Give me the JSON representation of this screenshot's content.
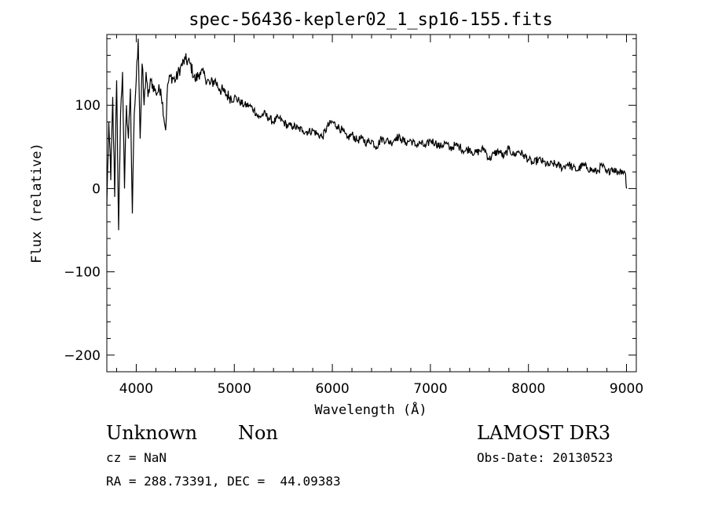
{
  "chart_data": {
    "type": "line",
    "title": "spec-56436-kepler02_1_sp16-155.fits",
    "xlabel": "Wavelength (Å)",
    "ylabel": "Flux (relative)",
    "xlim": [
      3700,
      9100
    ],
    "ylim": [
      -220,
      185
    ],
    "xticks": [
      4000,
      5000,
      6000,
      7000,
      8000,
      9000
    ],
    "yticks": [
      -200,
      -100,
      0,
      100
    ],
    "xtick_labels": [
      "4000",
      "5000",
      "6000",
      "7000",
      "8000",
      "9000"
    ],
    "ytick_labels": [
      "−200",
      "−100",
      "0",
      "100"
    ],
    "series": [
      {
        "name": "flux",
        "x": [
          3700,
          3720,
          3740,
          3760,
          3780,
          3800,
          3820,
          3840,
          3860,
          3880,
          3900,
          3920,
          3940,
          3960,
          3980,
          4000,
          4020,
          4040,
          4060,
          4080,
          4100,
          4120,
          4150,
          4200,
          4250,
          4300,
          4320,
          4350,
          4400,
          4450,
          4500,
          4550,
          4600,
          4650,
          4700,
          4750,
          4800,
          4850,
          4900,
          4950,
          5000,
          5050,
          5100,
          5150,
          5200,
          5250,
          5300,
          5350,
          5400,
          5450,
          5500,
          5550,
          5600,
          5650,
          5700,
          5750,
          5800,
          5850,
          5900,
          5950,
          6000,
          6050,
          6100,
          6150,
          6200,
          6250,
          6300,
          6350,
          6400,
          6450,
          6500,
          6550,
          6600,
          6650,
          6700,
          6750,
          6800,
          6850,
          6900,
          6950,
          7000,
          7050,
          7100,
          7150,
          7200,
          7250,
          7300,
          7350,
          7400,
          7450,
          7500,
          7550,
          7600,
          7650,
          7700,
          7750,
          7800,
          7850,
          7900,
          7950,
          8000,
          8050,
          8100,
          8150,
          8200,
          8250,
          8300,
          8350,
          8400,
          8450,
          8500,
          8550,
          8600,
          8650,
          8700,
          8750,
          8800,
          8850,
          8900,
          8950,
          8990,
          9000
        ],
        "values": [
          -20,
          80,
          10,
          110,
          -10,
          130,
          -50,
          90,
          140,
          0,
          100,
          60,
          120,
          -30,
          90,
          130,
          180,
          60,
          150,
          100,
          140,
          110,
          130,
          115,
          120,
          70,
          125,
          135,
          130,
          145,
          155,
          150,
          130,
          140,
          135,
          125,
          130,
          120,
          115,
          110,
          110,
          105,
          100,
          100,
          95,
          85,
          90,
          85,
          80,
          85,
          80,
          75,
          75,
          72,
          70,
          68,
          70,
          65,
          62,
          75,
          80,
          75,
          70,
          60,
          65,
          58,
          60,
          55,
          58,
          50,
          60,
          58,
          55,
          62,
          60,
          55,
          58,
          52,
          55,
          50,
          58,
          55,
          50,
          55,
          48,
          52,
          50,
          45,
          48,
          42,
          45,
          48,
          35,
          42,
          45,
          38,
          48,
          40,
          45,
          40,
          35,
          30,
          35,
          32,
          28,
          30,
          28,
          25,
          30,
          25,
          22,
          28,
          25,
          22,
          20,
          28,
          18,
          25,
          20,
          22,
          18,
          0
        ]
      }
    ]
  },
  "info": {
    "object_class": "Unknown",
    "subclass": "Non",
    "survey": "LAMOST DR3",
    "cz": "cz = NaN",
    "obs_date": "Obs-Date: 20130523",
    "coords": "RA = 288.73391, DEC =  44.09383"
  }
}
